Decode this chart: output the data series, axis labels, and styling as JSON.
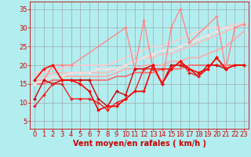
{
  "bg_color": "#b2eef0",
  "grid_color": "#999999",
  "xlabel": "Vent moyen/en rafales ( km/h )",
  "xlabel_color": "#cc0000",
  "xlabel_fontsize": 7,
  "yticks": [
    5,
    10,
    15,
    20,
    25,
    30,
    35
  ],
  "xticks": [
    0,
    1,
    2,
    3,
    4,
    5,
    6,
    7,
    8,
    9,
    10,
    11,
    12,
    13,
    14,
    15,
    16,
    17,
    18,
    19,
    20,
    21,
    22,
    23
  ],
  "ylim": [
    3,
    37
  ],
  "xlim": [
    -0.5,
    23.5
  ],
  "tick_color": "#cc0000",
  "tick_fontsize": 6,
  "lines": [
    {
      "x": [
        0,
        1,
        2,
        3,
        4,
        5,
        6,
        7,
        8,
        9,
        10,
        11,
        12,
        13,
        14,
        15,
        16,
        17,
        18,
        19,
        20,
        21,
        22,
        23
      ],
      "y": [
        15,
        15,
        16,
        16,
        16,
        16,
        16,
        16,
        16,
        17,
        17,
        18,
        18,
        18,
        19,
        19,
        19,
        20,
        20,
        20,
        20,
        20,
        20,
        20
      ],
      "color": "#ff6666",
      "lw": 1.2,
      "marker": null,
      "alpha": 1.0,
      "ls": "-",
      "zorder": 2
    },
    {
      "x": [
        0,
        1,
        2,
        3,
        4,
        5,
        6,
        7,
        8,
        9,
        10,
        11,
        12,
        13,
        14,
        15,
        16,
        17,
        18,
        19,
        20,
        21,
        22,
        23
      ],
      "y": [
        16,
        16,
        17,
        17,
        17,
        17,
        17,
        17,
        17,
        18,
        19,
        19,
        20,
        20,
        20,
        21,
        21,
        22,
        22,
        23,
        24,
        25,
        27,
        29
      ],
      "color": "#ffaaaa",
      "lw": 1.2,
      "marker": null,
      "alpha": 1.0,
      "ls": "-",
      "zorder": 2
    },
    {
      "x": [
        0,
        1,
        2,
        3,
        4,
        5,
        6,
        7,
        8,
        9,
        10,
        11,
        12,
        13,
        14,
        15,
        16,
        17,
        18,
        19,
        20,
        21,
        22,
        23
      ],
      "y": [
        17,
        17,
        18,
        18,
        18,
        18,
        18,
        18,
        18,
        19,
        20,
        21,
        22,
        22,
        23,
        23,
        24,
        25,
        26,
        27,
        28,
        29,
        30,
        31
      ],
      "color": "#ffbbbb",
      "lw": 1.2,
      "marker": null,
      "alpha": 1.0,
      "ls": "-",
      "zorder": 2
    },
    {
      "x": [
        0,
        1,
        2,
        3,
        4,
        5,
        6,
        7,
        8,
        9,
        10,
        11,
        12,
        13,
        14,
        15,
        16,
        17,
        18,
        19,
        20,
        21,
        22,
        23
      ],
      "y": [
        18,
        18,
        19,
        19,
        20,
        20,
        20,
        20,
        20,
        21,
        22,
        23,
        24,
        25,
        25,
        26,
        27,
        28,
        29,
        30,
        30,
        30,
        31,
        31
      ],
      "color": "#ffcccc",
      "lw": 1.2,
      "marker": null,
      "alpha": 1.0,
      "ls": "-",
      "zorder": 2
    },
    {
      "x": [
        0,
        1,
        2,
        3,
        4,
        5,
        6,
        7,
        8,
        9,
        10,
        11,
        12,
        13,
        14,
        15,
        16,
        17,
        18,
        19,
        20,
        21,
        22,
        23
      ],
      "y": [
        15,
        16,
        17,
        17,
        18,
        18,
        18,
        19,
        19,
        19,
        20,
        21,
        22,
        23,
        24,
        24,
        25,
        26,
        27,
        28,
        29,
        30,
        30,
        31
      ],
      "color": "#ffdddd",
      "lw": 1.2,
      "marker": "D",
      "markersize": 2.0,
      "alpha": 1.0,
      "ls": "-",
      "zorder": 2
    },
    {
      "x": [
        1,
        2,
        3,
        4,
        10,
        11,
        12,
        13,
        14,
        15,
        16,
        17,
        20,
        21,
        22,
        23
      ],
      "y": [
        16,
        20,
        20,
        20,
        30,
        19,
        32,
        19,
        15,
        30,
        35,
        26,
        33,
        19,
        30,
        31
      ],
      "color": "#ff8888",
      "lw": 1.0,
      "marker": "D",
      "markersize": 2.0,
      "alpha": 1.0,
      "ls": "-",
      "zorder": 3
    },
    {
      "x": [
        0,
        1,
        2,
        3,
        4,
        5,
        6,
        7,
        8,
        9,
        10,
        11,
        12,
        13,
        14,
        15,
        16,
        17,
        18,
        19,
        20,
        21,
        22,
        23
      ],
      "y": [
        11,
        16,
        15,
        16,
        16,
        16,
        16,
        11,
        9,
        13,
        12,
        19,
        19,
        20,
        15,
        20,
        20,
        19,
        17,
        20,
        20,
        19,
        20,
        20
      ],
      "color": "#cc0000",
      "lw": 1.0,
      "marker": "D",
      "markersize": 2.0,
      "alpha": 1.0,
      "ls": "-",
      "zorder": 4
    },
    {
      "x": [
        0,
        1,
        2,
        3,
        4,
        5,
        6,
        7,
        8,
        9,
        10,
        11,
        12,
        13,
        14,
        15,
        16,
        17,
        18,
        19,
        20,
        21,
        22,
        23
      ],
      "y": [
        9,
        12,
        15,
        15,
        11,
        11,
        11,
        10,
        8,
        10,
        11,
        13,
        19,
        19,
        19,
        19,
        21,
        18,
        17,
        19,
        22,
        19,
        20,
        20
      ],
      "color": "#ee2222",
      "lw": 1.0,
      "marker": "D",
      "markersize": 2.0,
      "alpha": 1.0,
      "ls": "-",
      "zorder": 4
    },
    {
      "x": [
        0,
        1,
        2,
        3,
        4,
        5,
        6,
        7,
        8,
        9,
        10,
        11,
        12,
        13,
        14,
        15,
        16,
        17,
        18,
        19,
        20,
        21,
        22,
        23
      ],
      "y": [
        16,
        19,
        20,
        16,
        16,
        15,
        13,
        8,
        9,
        9,
        11,
        13,
        13,
        20,
        15,
        19,
        21,
        19,
        18,
        19,
        22,
        19,
        20,
        20
      ],
      "color": "#ff0000",
      "lw": 1.2,
      "marker": "D",
      "markersize": 2.0,
      "alpha": 1.0,
      "ls": "-",
      "zorder": 4
    }
  ],
  "dashed_line_y": 2.5,
  "dashed_line_color": "#ff0000",
  "dashed_line_lw": 0.8
}
